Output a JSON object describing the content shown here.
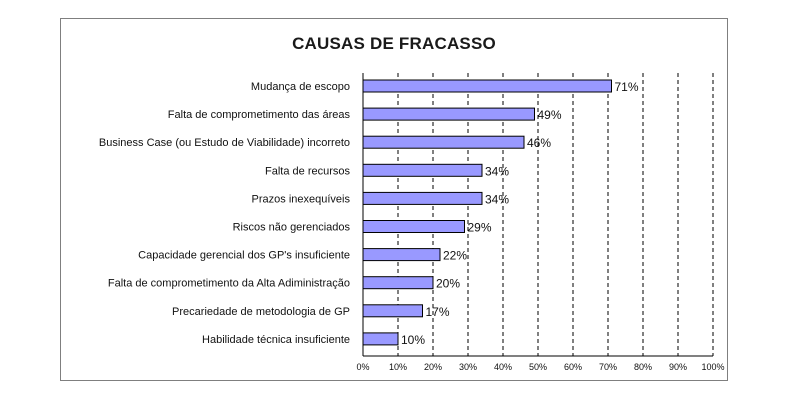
{
  "chart_data": {
    "type": "bar",
    "orientation": "horizontal",
    "title": "CAUSAS DE FRACASSO",
    "xlabel": "",
    "ylabel": "",
    "categories": [
      "Mudança de escopo",
      "Falta de comprometimento das áreas",
      "Business Case (ou Estudo de Viabilidade) incorreto",
      "Falta de recursos",
      "Prazos inexequíveis",
      "Riscos não gerenciados",
      "Capacidade gerencial dos GP's insuficiente",
      "Falta de comprometimento da Alta Adiministração",
      "Precariedade de metodologia de GP",
      "Habilidade técnica insuficiente"
    ],
    "values": [
      71,
      49,
      46,
      34,
      34,
      29,
      22,
      20,
      17,
      10
    ],
    "value_labels": [
      "71%",
      "49%",
      "46%",
      "34%",
      "34%",
      "29%",
      "22%",
      "20%",
      "17%",
      "10%"
    ],
    "xlim": [
      0,
      100
    ],
    "x_ticks": [
      "0%",
      "10%",
      "20%",
      "30%",
      "40%",
      "50%",
      "60%",
      "70%",
      "80%",
      "90%",
      "100%"
    ],
    "grid": "vertical dashed",
    "legend": "none",
    "colors": {
      "bar_fill": "#9999ff",
      "bar_stroke": "#000000",
      "grid": "#000000"
    }
  }
}
